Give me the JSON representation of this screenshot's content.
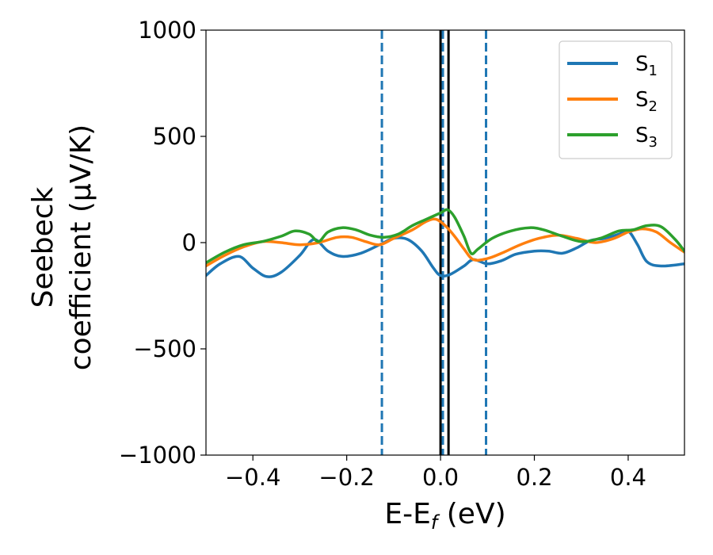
{
  "chart_data": {
    "type": "line",
    "xlabel_main": "E-E",
    "xlabel_sub": "f",
    "xlabel_unit": " (eV)",
    "ylabel_line1": "Seebeck",
    "ylabel_line2": "coefficient  (μV/K)",
    "xlim": [
      -0.5,
      0.52
    ],
    "ylim": [
      -1000,
      1000
    ],
    "x_ticks": [
      -0.4,
      -0.2,
      0.0,
      0.2,
      0.4
    ],
    "x_tick_labels": [
      "−0.4",
      "−0.2",
      "0.0",
      "0.2",
      "0.4"
    ],
    "y_ticks": [
      -1000,
      -500,
      0,
      500,
      1000
    ],
    "y_tick_labels": [
      "−1000",
      "−500",
      "0",
      "500",
      "1000"
    ],
    "grid": false,
    "legend_position": "top-right",
    "vertical_lines": [
      {
        "x": -0.125,
        "style": "dashed",
        "color": "#1f77b4"
      },
      {
        "x": 0.0,
        "style": "solid",
        "color": "#000000"
      },
      {
        "x": 0.005,
        "style": "dashed",
        "color": "#1f77b4"
      },
      {
        "x": 0.017,
        "style": "solid",
        "color": "#000000"
      },
      {
        "x": 0.097,
        "style": "dashed",
        "color": "#1f77b4"
      }
    ],
    "series": [
      {
        "name": "S",
        "sub": "1",
        "color": "#1f77b4",
        "points": [
          [
            -0.5,
            -155
          ],
          [
            -0.47,
            -100
          ],
          [
            -0.43,
            -65
          ],
          [
            -0.4,
            -120
          ],
          [
            -0.37,
            -160
          ],
          [
            -0.34,
            -140
          ],
          [
            -0.3,
            -60
          ],
          [
            -0.27,
            15
          ],
          [
            -0.24,
            -40
          ],
          [
            -0.21,
            -65
          ],
          [
            -0.17,
            -50
          ],
          [
            -0.13,
            -10
          ],
          [
            -0.1,
            20
          ],
          [
            -0.07,
            15
          ],
          [
            -0.04,
            -40
          ],
          [
            -0.015,
            -120
          ],
          [
            0.0,
            -155
          ],
          [
            0.02,
            -150
          ],
          [
            0.05,
            -110
          ],
          [
            0.07,
            -80
          ],
          [
            0.1,
            -100
          ],
          [
            0.13,
            -85
          ],
          [
            0.16,
            -55
          ],
          [
            0.2,
            -40
          ],
          [
            0.23,
            -40
          ],
          [
            0.26,
            -50
          ],
          [
            0.29,
            -25
          ],
          [
            0.32,
            10
          ],
          [
            0.35,
            20
          ],
          [
            0.38,
            40
          ],
          [
            0.4,
            55
          ],
          [
            0.42,
            -10
          ],
          [
            0.44,
            -90
          ],
          [
            0.47,
            -110
          ],
          [
            0.52,
            -100
          ]
        ]
      },
      {
        "name": "S",
        "sub": "2",
        "color": "#ff7f0e",
        "points": [
          [
            -0.5,
            -110
          ],
          [
            -0.46,
            -60
          ],
          [
            -0.42,
            -20
          ],
          [
            -0.38,
            5
          ],
          [
            -0.34,
            0
          ],
          [
            -0.3,
            -10
          ],
          [
            -0.26,
            0
          ],
          [
            -0.22,
            25
          ],
          [
            -0.19,
            25
          ],
          [
            -0.16,
            5
          ],
          [
            -0.13,
            -10
          ],
          [
            -0.1,
            20
          ],
          [
            -0.06,
            60
          ],
          [
            -0.03,
            100
          ],
          [
            -0.01,
            110
          ],
          [
            0.01,
            80
          ],
          [
            0.03,
            30
          ],
          [
            0.05,
            -30
          ],
          [
            0.07,
            -80
          ],
          [
            0.1,
            -75
          ],
          [
            0.13,
            -50
          ],
          [
            0.17,
            -10
          ],
          [
            0.21,
            20
          ],
          [
            0.25,
            35
          ],
          [
            0.29,
            20
          ],
          [
            0.33,
            0
          ],
          [
            0.37,
            20
          ],
          [
            0.4,
            50
          ],
          [
            0.43,
            65
          ],
          [
            0.46,
            50
          ],
          [
            0.49,
            0
          ],
          [
            0.52,
            -45
          ]
        ]
      },
      {
        "name": "S",
        "sub": "3",
        "color": "#2ca02c",
        "points": [
          [
            -0.5,
            -95
          ],
          [
            -0.46,
            -45
          ],
          [
            -0.42,
            -10
          ],
          [
            -0.38,
            5
          ],
          [
            -0.34,
            30
          ],
          [
            -0.31,
            55
          ],
          [
            -0.28,
            40
          ],
          [
            -0.26,
            5
          ],
          [
            -0.24,
            50
          ],
          [
            -0.21,
            70
          ],
          [
            -0.18,
            60
          ],
          [
            -0.15,
            35
          ],
          [
            -0.12,
            25
          ],
          [
            -0.09,
            40
          ],
          [
            -0.06,
            80
          ],
          [
            -0.03,
            110
          ],
          [
            0.0,
            140
          ],
          [
            0.015,
            155
          ],
          [
            0.03,
            120
          ],
          [
            0.05,
            30
          ],
          [
            0.065,
            -50
          ],
          [
            0.08,
            -30
          ],
          [
            0.11,
            20
          ],
          [
            0.15,
            55
          ],
          [
            0.19,
            70
          ],
          [
            0.22,
            60
          ],
          [
            0.26,
            30
          ],
          [
            0.3,
            5
          ],
          [
            0.34,
            20
          ],
          [
            0.38,
            55
          ],
          [
            0.41,
            60
          ],
          [
            0.44,
            80
          ],
          [
            0.47,
            75
          ],
          [
            0.5,
            15
          ],
          [
            0.52,
            -40
          ]
        ]
      }
    ]
  }
}
